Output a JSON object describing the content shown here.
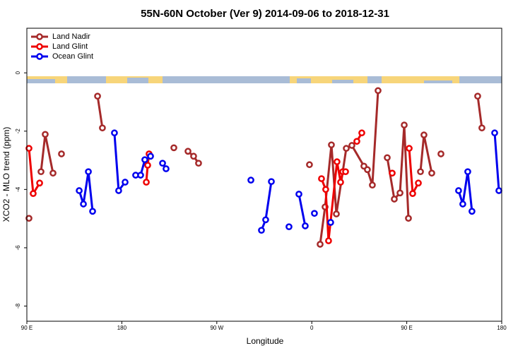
{
  "chart_data": {
    "type": "line",
    "title": "55N-60N October (Ver 9)   2014-09-06 to 2018-12-31",
    "x_label": "Longitude",
    "y_label": "XCO2 - MLO trend (ppm)",
    "xlim": [
      90,
      540
    ],
    "ylim": [
      -8.52,
      1.53
    ],
    "xticks": [
      {
        "value": 90,
        "label": "90 E"
      },
      180,
      {
        "value": 270,
        "label": "90 W"
      },
      {
        "value": 360,
        "label": "0"
      },
      {
        "value": 450,
        "label": "90 E"
      },
      {
        "value": 540,
        "label": "180"
      }
    ],
    "yticks": [
      0,
      -2,
      -4,
      -6,
      -8
    ],
    "legend": "top-left",
    "series": [
      {
        "name": "Land Nadir",
        "color": "#a52a2a",
        "x": [
          92.0,
          null,
          103.4,
          107.4,
          114.8,
          null,
          122.8,
          null,
          157.0,
          161.6,
          null,
          229.3,
          null,
          242.7,
          248.0,
          252.7,
          null,
          357.8,
          null,
          367.9,
          372.6,
          378.6,
          383.3,
          392.7,
          398.0,
          409.4,
          412.7,
          417.4,
          422.8,
          null,
          431.5,
          438.2,
          443.6,
          447.6,
          451.6,
          null,
          463.0,
          466.3,
          473.7,
          null,
          482.4,
          null,
          517.2,
          521.2
        ],
        "values": [
          -4.99,
          null,
          -3.39,
          -2.11,
          -3.44,
          null,
          -2.78,
          null,
          -0.8,
          -1.89,
          null,
          -2.57,
          null,
          -2.69,
          -2.86,
          -3.1,
          null,
          -3.15,
          null,
          -5.88,
          -4.6,
          -2.47,
          -4.84,
          -2.59,
          -2.49,
          -3.2,
          -3.32,
          -3.85,
          -0.61,
          null,
          -2.91,
          -4.33,
          -4.12,
          -1.79,
          -4.99,
          null,
          -3.39,
          -2.13,
          -3.44,
          null,
          -2.78,
          null,
          -0.8,
          -1.89
        ]
      },
      {
        "name": "Land Glint",
        "color": "#ee0000",
        "x": [
          92.0,
          96.0,
          102.1,
          null,
          203.2,
          204.5,
          205.8,
          null,
          369.2,
          373.2,
          375.9,
          383.9,
          387.3,
          389.3,
          392.0,
          null,
          402.7,
          407.4,
          null,
          436.2,
          null,
          452.3,
          455.6,
          461.0
        ],
        "values": [
          -2.59,
          -4.14,
          -3.78,
          null,
          -3.75,
          -3.17,
          -2.78,
          null,
          -3.63,
          -4.0,
          -5.76,
          -3.05,
          -3.75,
          -3.39,
          -3.39,
          null,
          -2.35,
          -2.06,
          null,
          -3.44,
          null,
          -2.59,
          -4.14,
          -3.78
        ]
      },
      {
        "name": "Ocean Glint",
        "color": "#0000ee",
        "x": [
          139.6,
          143.6,
          148.3,
          152.3,
          null,
          173.0,
          177.0,
          183.1,
          null,
          193.1,
          197.8,
          201.8,
          207.2,
          null,
          218.6,
          221.9,
          null,
          302.3,
          null,
          312.3,
          316.3,
          321.7,
          null,
          338.4,
          null,
          347.8,
          353.8,
          null,
          362.5,
          null,
          377.9,
          null,
          499.1,
          503.1,
          507.8,
          511.8,
          null,
          533.3,
          537.3
        ],
        "values": [
          -4.04,
          -4.5,
          -3.39,
          -4.75,
          null,
          -2.06,
          -4.04,
          -3.75,
          null,
          -3.51,
          -3.51,
          -2.98,
          -2.86,
          null,
          -3.1,
          -3.29,
          null,
          -3.68,
          null,
          -5.4,
          -5.04,
          -3.73,
          null,
          -5.28,
          null,
          -4.16,
          -5.25,
          null,
          -4.82,
          null,
          -5.13,
          null,
          -4.04,
          -4.5,
          -3.39,
          -4.75,
          null,
          -2.06,
          -4.04
        ]
      }
    ]
  }
}
